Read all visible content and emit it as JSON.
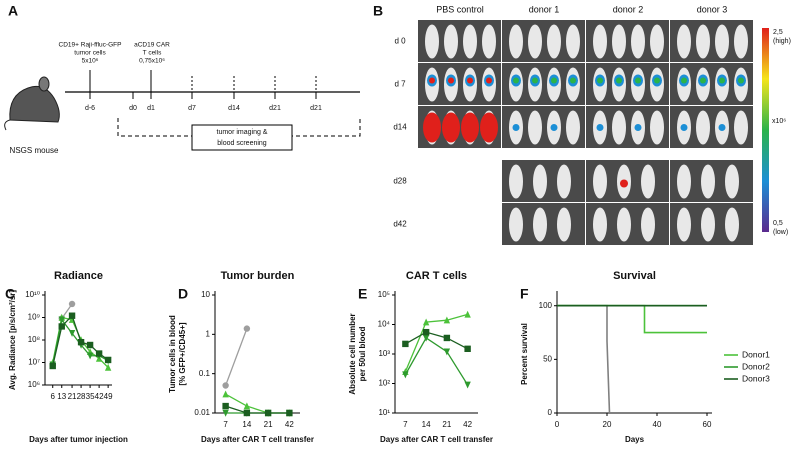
{
  "diagram": {
    "label": "A",
    "tumor_text": [
      "CD19+ Raji-ffluc-GFP",
      "tumor cells",
      "5x10⁶"
    ],
    "car_text": [
      "aCD19 CAR",
      "T cells",
      "0,75x10⁶"
    ],
    "days": [
      "d-6",
      "d0",
      "d1",
      "d7",
      "d14",
      "d21",
      "d21"
    ],
    "mouse": "NSGS mouse",
    "box": [
      "tumor imaging &",
      "blood screening"
    ]
  },
  "imaging": {
    "label": "B",
    "columns": [
      "PBS control",
      "donor 1",
      "donor 2",
      "donor 3"
    ],
    "rows": [
      "d 0",
      "d 7",
      "d14",
      "d28",
      "d42"
    ],
    "colorbar": {
      "high": [
        "2,5",
        "(high)"
      ],
      "unit": "x10⁶",
      "low": [
        "0,5",
        "(low)"
      ]
    }
  },
  "chart_data": [
    {
      "type": "line",
      "panel": "C",
      "title": "Radiance",
      "y_label": [
        "Avg. Radiance [p/s/cm²/sr]"
      ],
      "x_label": "Days after tumor injection",
      "log_y": true,
      "xlim": [
        0,
        52
      ],
      "xticks": [
        6,
        13,
        21,
        28,
        35,
        42,
        49
      ],
      "ylim": [
        1000000,
        10000000000
      ],
      "yticks": [
        {
          "value": 1000000,
          "label": "10⁶"
        },
        {
          "value": 10000000,
          "label": "10⁷"
        },
        {
          "value": 100000000,
          "label": "10⁸"
        },
        {
          "value": 1000000000,
          "label": "10⁹"
        },
        {
          "value": 10000000000,
          "label": "10¹⁰"
        }
      ],
      "series": [
        {
          "color": "#9e9e9e",
          "marker": "circle",
          "x": [
            6,
            13,
            21
          ],
          "values": [
            8000000,
            900000000,
            4000000000
          ]
        },
        {
          "color": "#4cc23a",
          "marker": "triangle",
          "x": [
            6,
            13,
            21,
            28,
            35,
            42,
            49
          ],
          "values": [
            10000000,
            1000000000,
            800000000,
            100000000,
            30000000,
            15000000,
            6000000
          ]
        },
        {
          "color": "#2e9a2e",
          "marker": "triangle-down",
          "x": [
            6,
            13,
            21,
            28,
            35,
            42,
            49
          ],
          "values": [
            8000000,
            800000000,
            200000000,
            60000000,
            20000000,
            20000000,
            12000000
          ]
        },
        {
          "color": "#1b5e20",
          "marker": "square",
          "x": [
            6,
            13,
            21,
            28,
            35,
            42,
            49
          ],
          "values": [
            7000000,
            400000000,
            1200000000,
            80000000,
            60000000,
            25000000,
            13000000
          ]
        }
      ]
    },
    {
      "type": "line",
      "panel": "D",
      "title": "Tumor burden",
      "y_label": [
        "Tumor cells in blood",
        "[% GFP+/CD45+]"
      ],
      "x_label": "Days after CAR T cell transfer",
      "log_y": true,
      "categories": [
        "7",
        "14",
        "21",
        "42"
      ],
      "ylim": [
        0.01,
        10
      ],
      "yticks": [
        0.01,
        0.1,
        1,
        10
      ],
      "series": [
        {
          "color": "#9e9e9e",
          "marker": "circle",
          "values": [
            0.05,
            1.4,
            null,
            null
          ]
        },
        {
          "color": "#4cc23a",
          "marker": "triangle",
          "values": [
            0.03,
            0.015,
            0.01,
            0.01
          ]
        },
        {
          "color": "#2e9a2e",
          "marker": "triangle-down",
          "values": [
            0.01,
            0.01,
            0.01,
            0.01
          ]
        },
        {
          "color": "#1b5e20",
          "marker": "square",
          "values": [
            0.015,
            0.01,
            0.01,
            0.01
          ]
        }
      ]
    },
    {
      "type": "line",
      "panel": "E",
      "title": "CAR T cells",
      "y_label": [
        "Absolute cell number",
        "per 50ul blood"
      ],
      "x_label": "Days after CAR T cell transfer",
      "log_y": true,
      "categories": [
        "7",
        "14",
        "21",
        "42"
      ],
      "ylim": [
        10,
        100000
      ],
      "yticks": [
        {
          "value": 10,
          "label": "10¹"
        },
        {
          "value": 100,
          "label": "10²"
        },
        {
          "value": 1000,
          "label": "10³"
        },
        {
          "value": 10000,
          "label": "10⁴"
        },
        {
          "value": 100000,
          "label": "10⁵"
        }
      ],
      "series": [
        {
          "color": "#4cc23a",
          "marker": "triangle",
          "values": [
            250,
            12000,
            14000,
            22000
          ]
        },
        {
          "color": "#2e9a2e",
          "marker": "triangle-down",
          "values": [
            200,
            3500,
            1200,
            90
          ]
        },
        {
          "color": "#1b5e20",
          "marker": "square",
          "values": [
            2200,
            5500,
            3500,
            1500
          ]
        }
      ]
    },
    {
      "type": "step",
      "panel": "F",
      "title": "Survival",
      "y_label": [
        "Percent survival"
      ],
      "x_label": "Days",
      "xlim": [
        0,
        62
      ],
      "xticks": [
        0,
        20,
        40,
        60
      ],
      "ylim": [
        0,
        110
      ],
      "yticks": [
        0,
        50,
        100
      ],
      "series": [
        {
          "color": "#808080",
          "x": [
            0,
            20,
            20,
            21
          ],
          "values": [
            100,
            100,
            67,
            0
          ]
        },
        {
          "name": "Donor1",
          "color": "#4cc23a",
          "x": [
            0,
            35,
            35,
            60
          ],
          "values": [
            100,
            100,
            75,
            75
          ]
        },
        {
          "name": "Donor2",
          "color": "#2e9a2e",
          "x": [
            0,
            60
          ],
          "values": [
            100,
            100
          ]
        },
        {
          "name": "Donor3",
          "color": "#1b5e20",
          "x": [
            0,
            60
          ],
          "values": [
            100,
            100
          ]
        }
      ]
    }
  ]
}
